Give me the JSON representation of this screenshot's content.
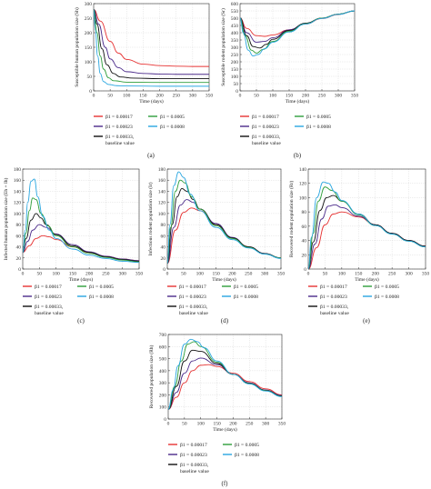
{
  "legend": {
    "entries": [
      {
        "text": "β1 = 0.00017",
        "color": "#e63232"
      },
      {
        "text": "β1 = 0.00023",
        "color": "#4b2a8a"
      },
      {
        "text": "β1 = 0.00033,",
        "text2": "baseline value",
        "color": "#111111"
      },
      {
        "text": "β1 = 0.0005",
        "color": "#2e9e3a"
      },
      {
        "text": "β1 = 0.0008",
        "color": "#29a6e0"
      }
    ]
  },
  "chart_data": [
    {
      "id": "a",
      "type": "line",
      "panel_label": "(a)",
      "xlabel": "Time (days)",
      "ylabel": "Susceptible human population size (Sh)",
      "xlim": [
        0,
        350
      ],
      "ylim": [
        0,
        300
      ],
      "xticks": [
        0,
        50,
        100,
        150,
        200,
        250,
        300,
        350
      ],
      "yticks": [
        0,
        50,
        100,
        150,
        200,
        250,
        300
      ],
      "grid": true,
      "series": [
        {
          "name": "β1 = 0.00017",
          "x": [
            0,
            20,
            50,
            75,
            100,
            150,
            200,
            250,
            300,
            350
          ],
          "y": [
            280,
            240,
            170,
            130,
            108,
            92,
            87,
            85,
            84,
            84
          ]
        },
        {
          "name": "β1 = 0.00023",
          "x": [
            0,
            15,
            35,
            50,
            75,
            100,
            150,
            200,
            250,
            350
          ],
          "y": [
            280,
            230,
            150,
            110,
            80,
            66,
            60,
            58,
            57,
            57
          ]
        },
        {
          "name": "β1 = 0.00033, baseline value",
          "x": [
            0,
            10,
            25,
            40,
            60,
            80,
            120,
            200,
            350
          ],
          "y": [
            280,
            230,
            145,
            90,
            60,
            48,
            44,
            42,
            42
          ]
        },
        {
          "name": "β1 = 0.0005",
          "x": [
            0,
            10,
            20,
            30,
            45,
            60,
            100,
            200,
            350
          ],
          "y": [
            280,
            200,
            120,
            75,
            45,
            35,
            30,
            29,
            29
          ]
        },
        {
          "name": "β1 = 0.0008",
          "x": [
            0,
            5,
            12,
            20,
            30,
            45,
            70,
            100,
            200,
            350
          ],
          "y": [
            280,
            210,
            120,
            60,
            32,
            22,
            18,
            17,
            16,
            16
          ]
        }
      ]
    },
    {
      "id": "b",
      "type": "line",
      "panel_label": "(b)",
      "xlabel": "Time (days)",
      "ylabel": "Susceptible rodent population size (Sr)",
      "xlim": [
        0,
        350
      ],
      "ylim": [
        0,
        600
      ],
      "xticks": [
        0,
        50,
        100,
        150,
        200,
        250,
        300,
        350
      ],
      "yticks": [
        0,
        50,
        100,
        150,
        200,
        250,
        300,
        350,
        400,
        450,
        500,
        550,
        600
      ],
      "grid": true,
      "series": [
        {
          "name": "β1 = 0.00017",
          "x": [
            0,
            20,
            50,
            75,
            100,
            150,
            200,
            250,
            300,
            350
          ],
          "y": [
            500,
            430,
            380,
            375,
            385,
            420,
            460,
            497,
            525,
            550
          ]
        },
        {
          "name": "β1 = 0.00023",
          "x": [
            0,
            20,
            50,
            75,
            100,
            150,
            200,
            250,
            300,
            350
          ],
          "y": [
            500,
            400,
            335,
            340,
            365,
            420,
            465,
            500,
            527,
            550
          ]
        },
        {
          "name": "β1 = 0.00033, baseline value",
          "x": [
            0,
            20,
            40,
            60,
            80,
            100,
            150,
            200,
            250,
            300,
            350
          ],
          "y": [
            500,
            380,
            305,
            295,
            320,
            355,
            415,
            465,
            500,
            527,
            550
          ]
        },
        {
          "name": "β1 = 0.0005",
          "x": [
            0,
            15,
            35,
            50,
            70,
            100,
            150,
            200,
            250,
            300,
            350
          ],
          "y": [
            500,
            380,
            280,
            260,
            285,
            340,
            410,
            462,
            500,
            527,
            550
          ]
        },
        {
          "name": "β1 = 0.0008",
          "x": [
            0,
            10,
            25,
            40,
            55,
            75,
            100,
            150,
            200,
            250,
            300,
            350
          ],
          "y": [
            500,
            400,
            280,
            240,
            250,
            290,
            335,
            405,
            460,
            498,
            526,
            550
          ]
        }
      ]
    },
    {
      "id": "c",
      "type": "line",
      "panel_label": "(c)",
      "xlabel": "Time (days)",
      "ylabel": "Infected human population size (Eh + Ih)",
      "xlim": [
        0,
        350
      ],
      "ylim": [
        0,
        180
      ],
      "xticks": [
        0,
        50,
        100,
        150,
        200,
        250,
        300,
        350
      ],
      "yticks": [
        0,
        20,
        40,
        60,
        80,
        100,
        120,
        140,
        160,
        180
      ],
      "grid": true,
      "series": [
        {
          "name": "β1 = 0.00017",
          "x": [
            0,
            20,
            40,
            60,
            80,
            100,
            150,
            200,
            250,
            300,
            350
          ],
          "y": [
            30,
            42,
            55,
            60,
            58,
            53,
            40,
            30,
            23,
            18,
            15
          ]
        },
        {
          "name": "β1 = 0.00023",
          "x": [
            0,
            15,
            30,
            50,
            70,
            100,
            150,
            200,
            250,
            300,
            350
          ],
          "y": [
            30,
            50,
            70,
            80,
            75,
            63,
            44,
            31,
            23,
            18,
            15
          ]
        },
        {
          "name": "β1 = 0.00033, baseline value",
          "x": [
            0,
            10,
            25,
            40,
            55,
            70,
            100,
            150,
            200,
            250,
            300,
            350
          ],
          "y": [
            30,
            55,
            88,
            100,
            92,
            80,
            62,
            42,
            30,
            22,
            17,
            14
          ]
        },
        {
          "name": "β1 = 0.0005",
          "x": [
            0,
            10,
            20,
            30,
            40,
            55,
            75,
            100,
            150,
            200,
            250,
            300,
            350
          ],
          "y": [
            30,
            65,
            105,
            128,
            125,
            100,
            78,
            60,
            40,
            28,
            21,
            16,
            13
          ]
        },
        {
          "name": "β1 = 0.0008",
          "x": [
            0,
            8,
            15,
            25,
            35,
            45,
            60,
            80,
            100,
            150,
            200,
            250,
            300,
            350
          ],
          "y": [
            30,
            70,
            120,
            158,
            162,
            130,
            95,
            70,
            55,
            36,
            25,
            19,
            14,
            12
          ]
        }
      ]
    },
    {
      "id": "d",
      "type": "line",
      "panel_label": "(d)",
      "xlabel": "Time (days)",
      "ylabel": "Infectious rodent population size (Ir)",
      "xlim": [
        0,
        350
      ],
      "ylim": [
        0,
        180
      ],
      "xticks": [
        0,
        50,
        100,
        150,
        200,
        250,
        300,
        350
      ],
      "yticks": [
        0,
        20,
        40,
        60,
        80,
        100,
        120,
        140,
        160,
        180
      ],
      "grid": true,
      "series": [
        {
          "name": "β1 = 0.00017",
          "x": [
            0,
            25,
            50,
            75,
            100,
            150,
            200,
            250,
            300,
            350
          ],
          "y": [
            10,
            70,
            102,
            110,
            105,
            80,
            56,
            40,
            28,
            20
          ]
        },
        {
          "name": "β1 = 0.00023",
          "x": [
            0,
            20,
            40,
            60,
            80,
            100,
            150,
            200,
            250,
            300,
            350
          ],
          "y": [
            10,
            75,
            115,
            125,
            120,
            108,
            82,
            57,
            40,
            28,
            20
          ]
        },
        {
          "name": "β1 = 0.00033, baseline value",
          "x": [
            0,
            15,
            30,
            45,
            60,
            80,
            100,
            150,
            200,
            250,
            300,
            350
          ],
          "y": [
            10,
            80,
            130,
            145,
            140,
            125,
            108,
            80,
            56,
            40,
            28,
            20
          ]
        },
        {
          "name": "β1 = 0.0005",
          "x": [
            0,
            10,
            25,
            40,
            55,
            75,
            100,
            150,
            200,
            250,
            300,
            350
          ],
          "y": [
            10,
            75,
            140,
            160,
            155,
            130,
            108,
            78,
            55,
            39,
            27,
            20
          ]
        },
        {
          "name": "β1 = 0.0008",
          "x": [
            0,
            8,
            20,
            35,
            50,
            70,
            100,
            150,
            200,
            250,
            300,
            350
          ],
          "y": [
            10,
            80,
            150,
            175,
            165,
            135,
            105,
            75,
            53,
            38,
            27,
            19
          ]
        }
      ]
    },
    {
      "id": "e",
      "type": "line",
      "panel_label": "(e)",
      "xlabel": "Time (days)",
      "ylabel": "Recovered rodent population size (Rr)",
      "xlim": [
        0,
        350
      ],
      "ylim": [
        0,
        140
      ],
      "xticks": [
        0,
        50,
        100,
        150,
        200,
        250,
        300,
        350
      ],
      "yticks": [
        0,
        20,
        40,
        60,
        80,
        100,
        120,
        140
      ],
      "grid": true,
      "series": [
        {
          "name": "β1 = 0.00017",
          "x": [
            0,
            25,
            50,
            75,
            100,
            150,
            200,
            250,
            300,
            350
          ],
          "y": [
            0,
            30,
            62,
            77,
            80,
            73,
            62,
            50,
            40,
            32
          ]
        },
        {
          "name": "β1 = 0.00023",
          "x": [
            0,
            20,
            40,
            60,
            80,
            100,
            150,
            200,
            250,
            300,
            350
          ],
          "y": [
            0,
            35,
            70,
            88,
            90,
            86,
            74,
            62,
            50,
            40,
            32
          ]
        },
        {
          "name": "β1 = 0.00033, baseline value",
          "x": [
            0,
            15,
            35,
            55,
            75,
            100,
            150,
            200,
            250,
            300,
            350
          ],
          "y": [
            0,
            38,
            82,
            100,
            103,
            95,
            77,
            62,
            50,
            40,
            32
          ]
        },
        {
          "name": "β1 = 0.0005",
          "x": [
            0,
            15,
            30,
            50,
            70,
            100,
            150,
            200,
            250,
            300,
            350
          ],
          "y": [
            0,
            50,
            95,
            115,
            110,
            95,
            76,
            61,
            49,
            39,
            31
          ]
        },
        {
          "name": "β1 = 0.0008",
          "x": [
            0,
            10,
            25,
            45,
            60,
            80,
            100,
            150,
            200,
            250,
            300,
            350
          ],
          "y": [
            0,
            45,
            100,
            122,
            120,
            108,
            96,
            77,
            61,
            49,
            39,
            31
          ]
        }
      ]
    },
    {
      "id": "f",
      "type": "line",
      "panel_label": "(f)",
      "xlabel": "Time (days)",
      "ylabel": "Recovered population size (Rh)",
      "xlim": [
        0,
        350
      ],
      "ylim": [
        0,
        700
      ],
      "xticks": [
        0,
        50,
        100,
        150,
        200,
        250,
        300,
        350
      ],
      "yticks": [
        0,
        100,
        200,
        300,
        400,
        500,
        600,
        700
      ],
      "grid": true,
      "series": [
        {
          "name": "β1 = 0.00017",
          "x": [
            0,
            25,
            50,
            75,
            100,
            125,
            150,
            200,
            250,
            300,
            350
          ],
          "y": [
            80,
            180,
            300,
            400,
            445,
            450,
            435,
            380,
            310,
            250,
            200
          ]
        },
        {
          "name": "β1 = 0.00023",
          "x": [
            0,
            25,
            50,
            75,
            100,
            150,
            200,
            250,
            300,
            350
          ],
          "y": [
            80,
            220,
            380,
            480,
            505,
            450,
            370,
            300,
            240,
            195
          ]
        },
        {
          "name": "β1 = 0.00033, baseline value",
          "x": [
            0,
            25,
            50,
            75,
            100,
            150,
            200,
            250,
            300,
            350
          ],
          "y": [
            80,
            270,
            480,
            570,
            560,
            460,
            370,
            295,
            237,
            190
          ]
        },
        {
          "name": "β1 = 0.0005",
          "x": [
            0,
            20,
            40,
            60,
            80,
            100,
            150,
            200,
            250,
            300,
            350
          ],
          "y": [
            80,
            270,
            480,
            620,
            640,
            600,
            470,
            370,
            293,
            235,
            188
          ]
        },
        {
          "name": "β1 = 0.0008",
          "x": [
            0,
            15,
            30,
            50,
            70,
            90,
            110,
            150,
            200,
            250,
            300,
            350
          ],
          "y": [
            80,
            240,
            440,
            620,
            660,
            640,
            590,
            480,
            370,
            290,
            232,
            185
          ]
        }
      ]
    }
  ]
}
